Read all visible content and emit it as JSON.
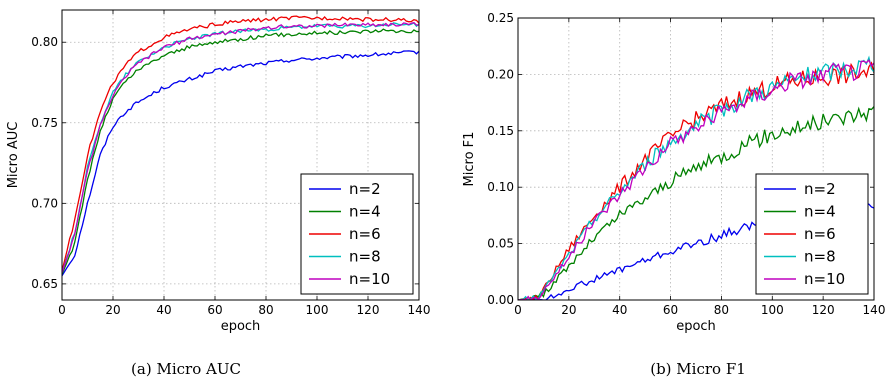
{
  "chart_data": [
    {
      "type": "line",
      "xlabel": "epoch",
      "ylabel": "Micro AUC",
      "caption": "(a) Micro AUC",
      "xlim": [
        0,
        140
      ],
      "ylim": [
        0.64,
        0.82
      ],
      "xticks": [
        0,
        20,
        40,
        60,
        80,
        100,
        120,
        140
      ],
      "xtick_labels": [
        "0",
        "20",
        "40",
        "60",
        "80",
        "100",
        "120",
        "140"
      ],
      "yticks": [
        0.65,
        0.7,
        0.75,
        0.8
      ],
      "ytick_labels": [
        "0.65",
        "0.70",
        "0.75",
        "0.80"
      ],
      "grid": true,
      "legend_position": "lower-right",
      "series": [
        {
          "name": "n=2",
          "color": "#0000ee",
          "x": [
            0,
            5,
            10,
            15,
            20,
            25,
            30,
            40,
            50,
            60,
            70,
            80,
            90,
            100,
            110,
            120,
            130,
            140
          ],
          "values": [
            0.655,
            0.668,
            0.7,
            0.73,
            0.748,
            0.757,
            0.763,
            0.772,
            0.777,
            0.782,
            0.785,
            0.787,
            0.789,
            0.79,
            0.791,
            0.792,
            0.793,
            0.794
          ]
        },
        {
          "name": "n=4",
          "color": "#008000",
          "x": [
            0,
            5,
            10,
            15,
            20,
            25,
            30,
            40,
            50,
            60,
            70,
            80,
            90,
            100,
            110,
            120,
            130,
            140
          ],
          "values": [
            0.656,
            0.675,
            0.715,
            0.745,
            0.765,
            0.776,
            0.783,
            0.792,
            0.797,
            0.8,
            0.802,
            0.804,
            0.805,
            0.806,
            0.806,
            0.807,
            0.807,
            0.807
          ]
        },
        {
          "name": "n=6",
          "color": "#ee0000",
          "x": [
            0,
            5,
            10,
            15,
            20,
            25,
            30,
            40,
            50,
            60,
            70,
            80,
            90,
            100,
            110,
            120,
            130,
            140
          ],
          "values": [
            0.658,
            0.69,
            0.73,
            0.757,
            0.775,
            0.786,
            0.794,
            0.803,
            0.808,
            0.811,
            0.813,
            0.814,
            0.815,
            0.815,
            0.815,
            0.814,
            0.814,
            0.813
          ]
        },
        {
          "name": "n=8",
          "color": "#00bfbf",
          "x": [
            0,
            5,
            10,
            15,
            20,
            25,
            30,
            40,
            50,
            60,
            70,
            80,
            90,
            100,
            110,
            120,
            130,
            140
          ],
          "values": [
            0.657,
            0.682,
            0.722,
            0.75,
            0.769,
            0.78,
            0.788,
            0.797,
            0.802,
            0.805,
            0.807,
            0.808,
            0.809,
            0.81,
            0.81,
            0.81,
            0.811,
            0.811
          ]
        },
        {
          "name": "n=10",
          "color": "#bf00bf",
          "x": [
            0,
            5,
            10,
            15,
            20,
            25,
            30,
            40,
            50,
            60,
            70,
            80,
            90,
            100,
            110,
            120,
            130,
            140
          ],
          "values": [
            0.657,
            0.68,
            0.72,
            0.748,
            0.767,
            0.779,
            0.787,
            0.797,
            0.802,
            0.805,
            0.807,
            0.809,
            0.81,
            0.81,
            0.811,
            0.811,
            0.811,
            0.811
          ]
        }
      ]
    },
    {
      "type": "line",
      "xlabel": "epoch",
      "ylabel": "Micro F1",
      "caption": "(b) Micro F1",
      "xlim": [
        0,
        140
      ],
      "ylim": [
        0.0,
        0.25
      ],
      "xticks": [
        0,
        20,
        40,
        60,
        80,
        100,
        120,
        140
      ],
      "xtick_labels": [
        "0",
        "20",
        "40",
        "60",
        "80",
        "100",
        "120",
        "140"
      ],
      "yticks": [
        0.0,
        0.05,
        0.1,
        0.15,
        0.2,
        0.25
      ],
      "ytick_labels": [
        "0.00",
        "0.05",
        "0.10",
        "0.15",
        "0.20",
        "0.25"
      ],
      "grid": true,
      "legend_position": "lower-right",
      "series": [
        {
          "name": "n=2",
          "color": "#0000ee",
          "x": [
            0,
            10,
            15,
            20,
            30,
            40,
            50,
            60,
            70,
            80,
            90,
            100,
            110,
            120,
            130,
            140
          ],
          "values": [
            0.0,
            0.0,
            0.004,
            0.01,
            0.018,
            0.027,
            0.035,
            0.043,
            0.05,
            0.057,
            0.065,
            0.068,
            0.07,
            0.072,
            0.076,
            0.086
          ]
        },
        {
          "name": "n=4",
          "color": "#008000",
          "x": [
            0,
            10,
            20,
            30,
            40,
            50,
            60,
            70,
            80,
            90,
            100,
            110,
            120,
            130,
            140
          ],
          "values": [
            0.0,
            0.005,
            0.03,
            0.055,
            0.075,
            0.09,
            0.105,
            0.118,
            0.127,
            0.138,
            0.147,
            0.153,
            0.158,
            0.163,
            0.168
          ]
        },
        {
          "name": "n=6",
          "color": "#ee0000",
          "x": [
            0,
            8,
            20,
            30,
            40,
            50,
            60,
            70,
            80,
            90,
            100,
            110,
            120,
            130,
            140
          ],
          "values": [
            0.0,
            0.002,
            0.045,
            0.075,
            0.1,
            0.125,
            0.145,
            0.16,
            0.172,
            0.182,
            0.19,
            0.195,
            0.198,
            0.2,
            0.203
          ]
        },
        {
          "name": "n=8",
          "color": "#00bfbf",
          "x": [
            0,
            8,
            20,
            30,
            40,
            50,
            60,
            70,
            80,
            90,
            100,
            110,
            120,
            130,
            140
          ],
          "values": [
            0.0,
            0.002,
            0.04,
            0.072,
            0.096,
            0.12,
            0.14,
            0.155,
            0.168,
            0.18,
            0.188,
            0.196,
            0.201,
            0.205,
            0.21
          ]
        },
        {
          "name": "n=10",
          "color": "#bf00bf",
          "x": [
            0,
            8,
            20,
            30,
            40,
            50,
            60,
            70,
            80,
            90,
            100,
            110,
            120,
            130,
            140
          ],
          "values": [
            0.0,
            0.002,
            0.038,
            0.07,
            0.094,
            0.118,
            0.138,
            0.153,
            0.166,
            0.178,
            0.187,
            0.195,
            0.2,
            0.203,
            0.206
          ]
        }
      ]
    }
  ]
}
